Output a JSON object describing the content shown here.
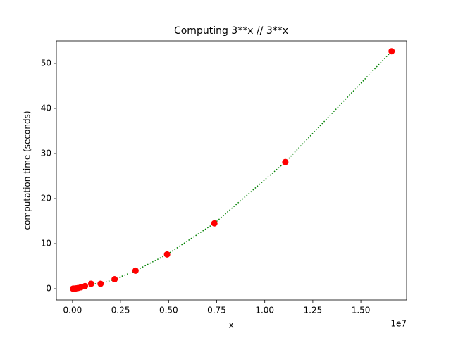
{
  "chart_data": {
    "type": "line",
    "title": "Computing 3**x // 3**x",
    "x_label": "x",
    "y_label": "computation time (seconds)",
    "x_offset_label": "1e7",
    "x": [
      25000,
      38000,
      57000,
      85000,
      130000,
      190000,
      290000,
      430000,
      650000,
      970000,
      1460000,
      2190000,
      3280000,
      4920000,
      7380000,
      11070000,
      16600000
    ],
    "series": [
      {
        "name": "computation time",
        "line_color": "#008000",
        "marker_color": "#ff0000",
        "line_style": "dotted",
        "values": [
          0.004,
          0.007,
          0.013,
          0.024,
          0.045,
          0.085,
          0.16,
          0.31,
          0.58,
          1.1,
          1.1,
          2.1,
          4.0,
          7.6,
          14.5,
          28.1,
          52.7
        ]
      }
    ],
    "xlim": [
      -840000,
      17380000
    ],
    "ylim": [
      -2.5,
      55
    ],
    "xticks": [
      {
        "value": 0,
        "label": "0.00"
      },
      {
        "value": 2500000,
        "label": "0.25"
      },
      {
        "value": 5000000,
        "label": "0.50"
      },
      {
        "value": 7500000,
        "label": "0.75"
      },
      {
        "value": 10000000,
        "label": "1.00"
      },
      {
        "value": 12500000,
        "label": "1.25"
      },
      {
        "value": 15000000,
        "label": "1.50"
      }
    ],
    "yticks": [
      0,
      10,
      20,
      30,
      40,
      50
    ],
    "grid": false
  }
}
